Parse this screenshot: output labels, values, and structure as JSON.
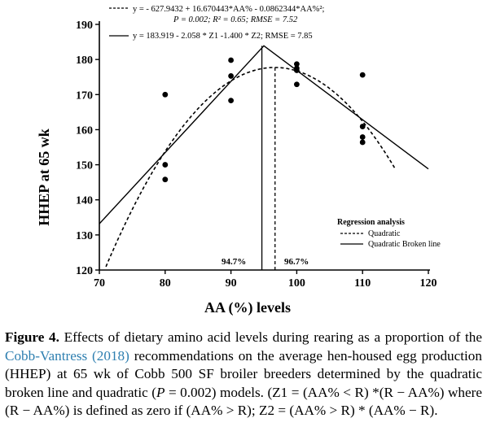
{
  "chart_data": {
    "type": "scatter",
    "xlabel": "AA (%) levels",
    "ylabel": "HHEP at 65 wk",
    "xlim": [
      70,
      120
    ],
    "ylim": [
      120,
      190
    ],
    "xticks": [
      70,
      80,
      90,
      100,
      110,
      120
    ],
    "yticks": [
      120,
      130,
      140,
      150,
      160,
      170,
      180,
      190
    ],
    "points": [
      {
        "x": 80,
        "y": 170
      },
      {
        "x": 80,
        "y": 150
      },
      {
        "x": 80,
        "y": 145.8
      },
      {
        "x": 90,
        "y": 179.8
      },
      {
        "x": 90,
        "y": 175.3
      },
      {
        "x": 90,
        "y": 168.3
      },
      {
        "x": 100,
        "y": 178.7
      },
      {
        "x": 100,
        "y": 177.5
      },
      {
        "x": 100,
        "y": 176.9
      },
      {
        "x": 100,
        "y": 172.9
      },
      {
        "x": 110,
        "y": 175.6
      },
      {
        "x": 110,
        "y": 160.9
      },
      {
        "x": 110,
        "y": 157.9
      },
      {
        "x": 110,
        "y": 156.4
      }
    ],
    "quadratic": {
      "a": -627.9432,
      "b": 16.670443,
      "c": -0.0862344,
      "x_range": [
        71,
        115
      ],
      "peak_x": 96.7
    },
    "broken_line": {
      "x": [
        70,
        95,
        120
      ],
      "y": [
        133.2,
        183.9,
        148.8
      ],
      "peak_x": 94.7
    },
    "legend_top": {
      "quad_line1": "y = - 627.9432 + 16.670443*AA% - 0.0862344*AA%²;",
      "quad_line2": "P = 0.002; R² = 0.65; RMSE = 7.52",
      "broken": "y = 183.919 - 2.058 * Z1 -1.400 * Z2; RMSE = 7.85"
    },
    "legend_box": {
      "title": "Regression analysis",
      "items": [
        "Quadratic",
        "Quadratic Broken line"
      ]
    },
    "annotations": {
      "left": "94.7%",
      "right": "96.7%"
    }
  },
  "caption": {
    "lead": "Figure 4.",
    "p1": " Effects of dietary amino acid levels during rearing as a proportion of the ",
    "cite": "Cobb-Vantress (2018)",
    "p2": " recommendations on the average hen-housed egg production (HHEP) at 65 wk of Cobb 500 SF broiler breeders determined by the quadratic broken line and quadratic (",
    "pvar": "P",
    "p3": " = 0.002) models. (Z1 = (AA% < R) *(R − AA%) where (R − AA%) is defined as zero if (AA% > R); Z2 = (AA% > R) * (AA% − R)."
  }
}
